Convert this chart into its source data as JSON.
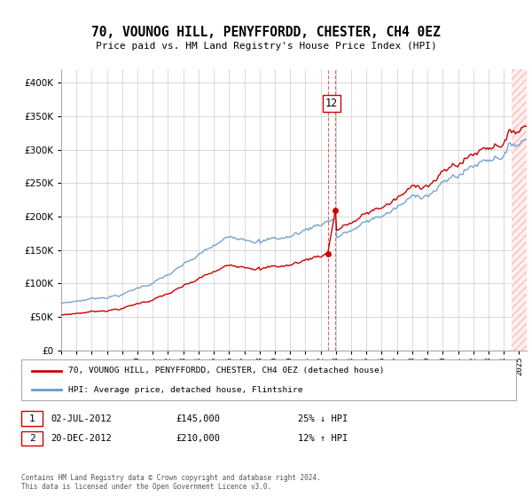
{
  "title": "70, VOUNOG HILL, PENYFFORDD, CHESTER, CH4 0EZ",
  "subtitle": "Price paid vs. HM Land Registry's House Price Index (HPI)",
  "legend_line1": "70, VOUNOG HILL, PENYFFORDD, CHESTER, CH4 0EZ (detached house)",
  "legend_line2": "HPI: Average price, detached house, Flintshire",
  "transaction1_date": "02-JUL-2012",
  "transaction1_price": "£145,000",
  "transaction1_pct": "25% ↓ HPI",
  "transaction2_date": "20-DEC-2012",
  "transaction2_price": "£210,000",
  "transaction2_pct": "12% ↑ HPI",
  "footer": "Contains HM Land Registry data © Crown copyright and database right 2024.\nThis data is licensed under the Open Government Licence v3.0.",
  "ylim": [
    0,
    420000
  ],
  "yticks": [
    0,
    50000,
    100000,
    150000,
    200000,
    250000,
    300000,
    350000,
    400000
  ],
  "ytick_labels": [
    "£0",
    "£50K",
    "£100K",
    "£150K",
    "£200K",
    "£250K",
    "£300K",
    "£350K",
    "£400K"
  ],
  "red_color": "#cc0000",
  "blue_color": "#6699cc",
  "sale1_x": 2012.5,
  "sale1_y": 145000,
  "sale2_x": 2012.95,
  "sale2_y": 210000,
  "annotation_label": "12",
  "background_color": "#ffffff",
  "grid_color": "#cccccc",
  "hatch_start": 2024.5,
  "xlim_start": 1995,
  "xlim_end": 2025.5
}
